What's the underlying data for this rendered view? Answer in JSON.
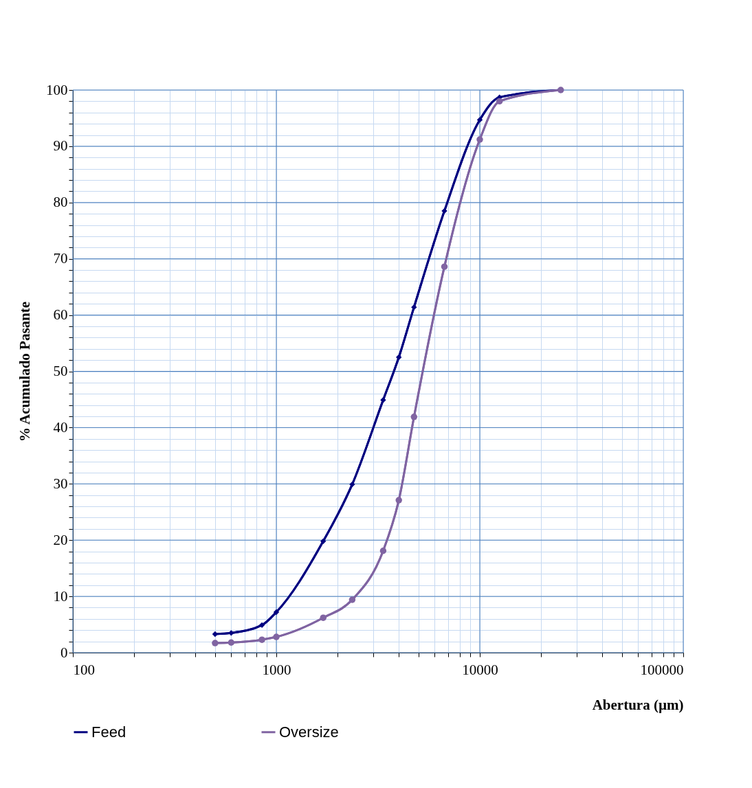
{
  "chart_data": {
    "type": "line",
    "xlabel": "Abertura (µm)",
    "ylabel": "% Acumulado Pasante",
    "log": "x",
    "xlim": [
      100,
      100000
    ],
    "ylim": [
      0,
      100
    ],
    "xticks": [
      100,
      {
        "value": 200,
        "label": null
      },
      {
        "value": 300,
        "label": null
      },
      {
        "value": 400,
        "label": null
      },
      {
        "value": 500,
        "label": null
      },
      {
        "value": 600,
        "label": null
      },
      {
        "value": 700,
        "label": null
      },
      {
        "value": 800,
        "label": null
      },
      {
        "value": 900,
        "label": null
      },
      1000,
      {
        "value": 2000,
        "label": null
      },
      {
        "value": 3000,
        "label": null
      },
      {
        "value": 4000,
        "label": null
      },
      {
        "value": 5000,
        "label": null
      },
      {
        "value": 6000,
        "label": null
      },
      {
        "value": 7000,
        "label": null
      },
      {
        "value": 8000,
        "label": null
      },
      {
        "value": 9000,
        "label": null
      },
      10000,
      {
        "value": 20000,
        "label": null
      },
      {
        "value": 30000,
        "label": null
      },
      {
        "value": 40000,
        "label": null
      },
      {
        "value": 50000,
        "label": null
      },
      {
        "value": 60000,
        "label": null
      },
      {
        "value": 70000,
        "label": null
      },
      {
        "value": 80000,
        "label": null
      },
      {
        "value": 90000,
        "label": null
      },
      100000
    ],
    "yticks": [
      0,
      {
        "value": 2,
        "label": null
      },
      {
        "value": 4,
        "label": null
      },
      {
        "value": 6,
        "label": null
      },
      {
        "value": 8,
        "label": null
      },
      10,
      {
        "value": 12,
        "label": null
      },
      {
        "value": 14,
        "label": null
      },
      {
        "value": 16,
        "label": null
      },
      {
        "value": 18,
        "label": null
      },
      20,
      {
        "value": 22,
        "label": null
      },
      {
        "value": 24,
        "label": null
      },
      {
        "value": 26,
        "label": null
      },
      {
        "value": 28,
        "label": null
      },
      30,
      {
        "value": 32,
        "label": null
      },
      {
        "value": 34,
        "label": null
      },
      {
        "value": 36,
        "label": null
      },
      {
        "value": 38,
        "label": null
      },
      40,
      {
        "value": 42,
        "label": null
      },
      {
        "value": 44,
        "label": null
      },
      {
        "value": 46,
        "label": null
      },
      {
        "value": 48,
        "label": null
      },
      50,
      {
        "value": 52,
        "label": null
      },
      {
        "value": 54,
        "label": null
      },
      {
        "value": 56,
        "label": null
      },
      {
        "value": 58,
        "label": null
      },
      60,
      {
        "value": 62,
        "label": null
      },
      {
        "value": 64,
        "label": null
      },
      {
        "value": 66,
        "label": null
      },
      {
        "value": 68,
        "label": null
      },
      70,
      {
        "value": 72,
        "label": null
      },
      {
        "value": 74,
        "label": null
      },
      {
        "value": 76,
        "label": null
      },
      {
        "value": 78,
        "label": null
      },
      80,
      {
        "value": 82,
        "label": null
      },
      {
        "value": 84,
        "label": null
      },
      {
        "value": 86,
        "label": null
      },
      {
        "value": 88,
        "label": null
      },
      90,
      {
        "value": 92,
        "label": null
      },
      {
        "value": 94,
        "label": null
      },
      {
        "value": 96,
        "label": null
      },
      {
        "value": 98,
        "label": null
      },
      100
    ],
    "grid": true,
    "legend": "bottom",
    "line_style": "solid",
    "x": [
      500,
      600,
      850,
      1000,
      1700,
      2360,
      3350,
      4000,
      4750,
      6700,
      10000,
      12500,
      25000
    ],
    "series": [
      {
        "name": "Feed",
        "color": "#000080",
        "marker": "diamond",
        "values": [
          3.3,
          3.5,
          4.9,
          7.2,
          19.8,
          29.9,
          44.9,
          52.5,
          61.4,
          78.5,
          94.7,
          98.7,
          100
        ]
      },
      {
        "name": "Oversize",
        "color": "#8064a2",
        "marker": "circle",
        "values": [
          1.7,
          1.8,
          2.3,
          2.8,
          6.2,
          9.4,
          18.1,
          27.1,
          41.9,
          68.6,
          91.2,
          98.0,
          100
        ]
      }
    ]
  }
}
